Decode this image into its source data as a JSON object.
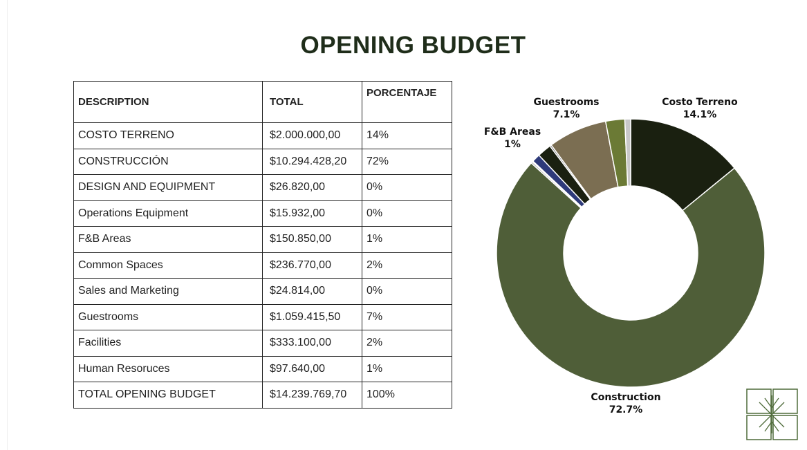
{
  "title": "OPENING BUDGET",
  "table": {
    "header": [
      "DESCRIPTION",
      "TOTAL",
      "PORCENTAJE"
    ],
    "rows": [
      [
        "COSTO TERRENO",
        "$2.000.000,00",
        "14%"
      ],
      [
        "CONSTRUCCIÓN",
        "$10.294.428,20",
        "72%"
      ],
      [
        "DESIGN AND EQUIPMENT",
        "$26.820,00",
        "0%"
      ],
      [
        "Operations Equipment",
        "$15.932,00",
        "0%"
      ],
      [
        "F&B Areas",
        "$150.850,00",
        "1%"
      ],
      [
        "Common Spaces",
        "$236.770,00",
        "2%"
      ],
      [
        "Sales and Marketing",
        "$24.814,00",
        "0%"
      ],
      [
        "Guestrooms",
        "$1.059.415,50",
        "7%"
      ],
      [
        "Facilities",
        "$333.100,00",
        "2%"
      ],
      [
        "Human Resoruces",
        "$97.640,00",
        "1%"
      ],
      [
        "TOTAL OPENING BUDGET",
        "$14.239.769,70",
        "100%"
      ]
    ]
  },
  "chart_data": {
    "type": "donut",
    "categories": [
      "Costo Terreno",
      "Construction",
      null,
      null,
      "F&B Areas",
      null,
      null,
      "Guestrooms",
      null,
      null
    ],
    "values": [
      14.1,
      72.7,
      0.2,
      0.1,
      1,
      1.7,
      0.2,
      7.1,
      2.3,
      0.7
    ],
    "value_labels": [
      "14.1%",
      "72.7%",
      null,
      null,
      "1%",
      null,
      null,
      "7.1%",
      null,
      null
    ],
    "colors": [
      "#1a2010",
      "#4f5e38",
      "#b0b0b0",
      "#9a9a9a",
      "#2e3a7a",
      "#1a2010",
      "#777",
      "#7b6e52",
      "#6b7a35",
      "#c8c8c8"
    ]
  }
}
